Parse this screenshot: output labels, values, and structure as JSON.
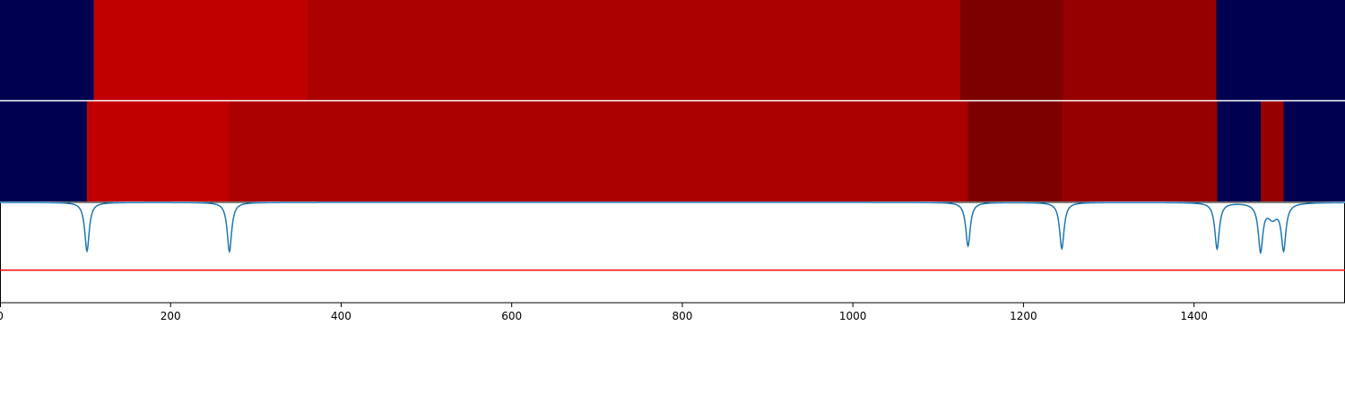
{
  "chart_data": {
    "type": "heatmap",
    "xlim": [
      0,
      1577
    ],
    "x_ticks": [
      0,
      200,
      400,
      600,
      800,
      1000,
      1200,
      1400
    ],
    "x_tick_labels": [
      "0",
      "200",
      "400",
      "600",
      "800",
      "1000",
      "1200",
      "1400"
    ],
    "colors": {
      "background_segment": "#000050",
      "level_1": "#c00000",
      "level_2": "#aa0000",
      "level_3": "#7c0000",
      "level_4": "#960000",
      "signal_line": "#1f77b4",
      "threshold_line": "#ff0000",
      "separator": "#ffffff"
    },
    "rows": [
      {
        "segments": [
          {
            "start": 0,
            "end": 110,
            "level": 0
          },
          {
            "start": 110,
            "end": 360,
            "level": 1
          },
          {
            "start": 360,
            "end": 1126,
            "level": 2
          },
          {
            "start": 1126,
            "end": 1246,
            "level": 3
          },
          {
            "start": 1246,
            "end": 1426,
            "level": 4
          },
          {
            "start": 1426,
            "end": 1577,
            "level": 0
          }
        ]
      },
      {
        "segments": [
          {
            "start": 0,
            "end": 102,
            "level": 0
          },
          {
            "start": 102,
            "end": 269,
            "level": 1
          },
          {
            "start": 269,
            "end": 1135,
            "level": 2
          },
          {
            "start": 1135,
            "end": 1245,
            "level": 3
          },
          {
            "start": 1245,
            "end": 1427,
            "level": 4
          },
          {
            "start": 1427,
            "end": 1478,
            "level": 0
          },
          {
            "start": 1478,
            "end": 1505,
            "level": 4
          },
          {
            "start": 1505,
            "end": 1577,
            "level": 0
          }
        ]
      }
    ],
    "signal": {
      "baseline": 1.0,
      "ylim": [
        -1.0,
        1.0
      ],
      "threshold": -0.35,
      "dips": [
        {
          "x": 102,
          "depth": 0.97,
          "width": 3.2
        },
        {
          "x": 269,
          "depth": 0.98,
          "width": 3.2
        },
        {
          "x": 1135,
          "depth": 0.87,
          "width": 3.2
        },
        {
          "x": 1245,
          "depth": 0.92,
          "width": 3.2
        },
        {
          "x": 1427,
          "depth": 0.92,
          "width": 3.2
        },
        {
          "x": 1478,
          "depth": 0.93,
          "width": 3.2
        },
        {
          "x": 1505,
          "depth": 0.9,
          "width": 3.2
        },
        {
          "x": 1492,
          "depth": 0.28,
          "width": 7.0
        }
      ]
    }
  }
}
